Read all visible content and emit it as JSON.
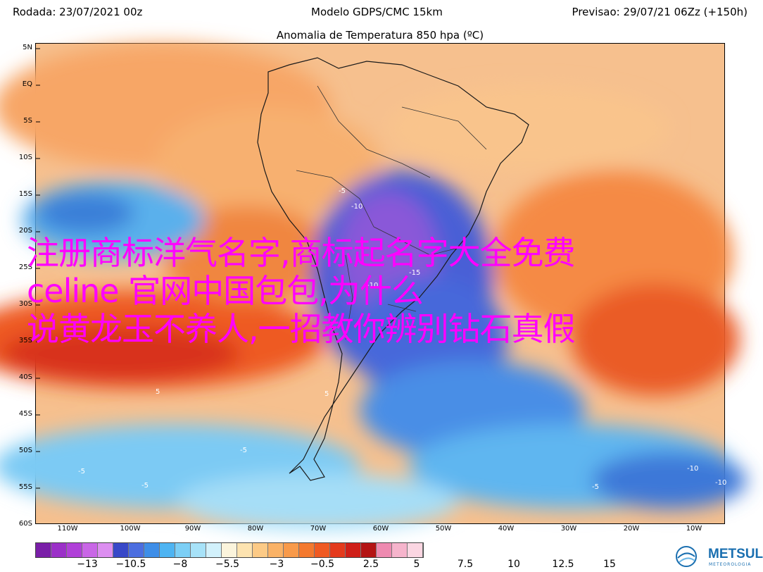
{
  "header": {
    "rodada": "Rodada: 23/07/2021 00z",
    "modelo": "Modelo GDPS/CMC 15km",
    "previsao": "Previsao: 29/07/21 06Zz (+150h)",
    "subtitle": "Anomalia de Temperatura 850 hpa (ºC)"
  },
  "map": {
    "lat_labels": [
      "5N",
      "EQ",
      "5S",
      "10S",
      "15S",
      "20S",
      "25S",
      "30S",
      "35S",
      "40S",
      "45S",
      "50S",
      "55S",
      "60S"
    ],
    "lon_labels": [
      "110W",
      "100W",
      "90W",
      "80W",
      "70W",
      "60W",
      "50W",
      "40W",
      "30W",
      "20W",
      "10W"
    ],
    "contour_labels": [
      "-10",
      "-5",
      "-15",
      "-10",
      "5",
      "5",
      "-5",
      "-5",
      "-10",
      "-10",
      "-5",
      "-5"
    ]
  },
  "overlay_text": {
    "line1": "注册商标洋气名字,商标起名字大全免费",
    "line2": "celine 官网中国包包,为什么",
    "line3": "说黄龙玉不养人,一招教你辨别钻石真假"
  },
  "colorbar": {
    "colors": [
      "#7a1fa8",
      "#9b30c8",
      "#b040d8",
      "#c966e6",
      "#dc8ef0",
      "#3848c8",
      "#4c6ee0",
      "#3e8ee8",
      "#4eb4f2",
      "#7ccff6",
      "#a7e2f8",
      "#d2f1fb",
      "#fbf4dc",
      "#fde3b0",
      "#fcca86",
      "#fab266",
      "#f89a4a",
      "#f4792e",
      "#f05a22",
      "#e43a1c",
      "#cf1f18",
      "#b41414",
      "#ee8ab0",
      "#f6b4cc",
      "#fbd6e2"
    ],
    "labels": [
      "−13",
      "−10.5",
      "−8",
      "−5.5",
      "−3",
      "−0.5",
      "2.5",
      "5",
      "7.5",
      "10",
      "12.5",
      "15"
    ]
  },
  "logo": {
    "name": "METSUL",
    "sub": "METEOROLOGIA"
  }
}
